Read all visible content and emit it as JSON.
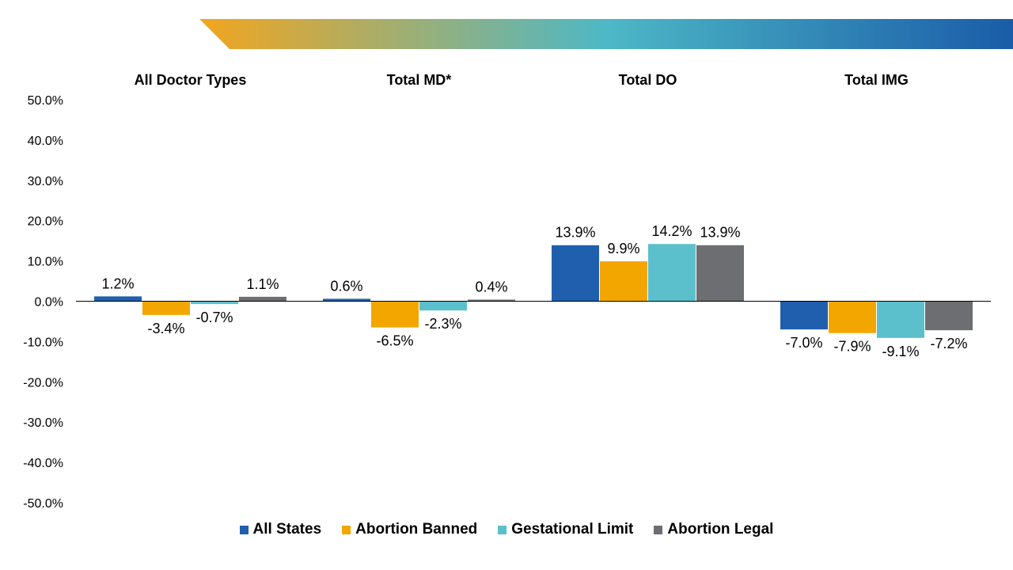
{
  "colors": {
    "banner_stops": [
      "#F3A51E",
      "#4DB8C6",
      "#1A5CA8"
    ]
  },
  "chart_data": {
    "type": "bar",
    "categories": [
      "All Doctor Types",
      "Total MD*",
      "Total DO",
      "Total IMG"
    ],
    "series": [
      {
        "name": "All States",
        "color": "#1F5FAD",
        "values": [
          1.2,
          0.6,
          13.9,
          -7.0
        ],
        "labels": [
          "1.2%",
          "0.6%",
          "13.9%",
          "-7.0%"
        ]
      },
      {
        "name": "Abortion Banned",
        "color": "#F3A500",
        "values": [
          -3.4,
          -6.5,
          9.9,
          -7.9
        ],
        "labels": [
          "-3.4%",
          "-6.5%",
          "9.9%",
          "-7.9%"
        ]
      },
      {
        "name": "Gestational Limit",
        "color": "#5BC0CB",
        "values": [
          -0.7,
          -2.3,
          14.2,
          -9.1
        ],
        "labels": [
          "-0.7%",
          "-2.3%",
          "14.2%",
          "-9.1%"
        ]
      },
      {
        "name": "Abortion Legal",
        "color": "#6D6E71",
        "values": [
          1.1,
          0.4,
          13.9,
          -7.2
        ],
        "labels": [
          "1.1%",
          "0.4%",
          "13.9%",
          "-7.2%"
        ]
      }
    ],
    "ylim": [
      -50,
      50
    ],
    "yticks": [
      50,
      40,
      30,
      20,
      10,
      0,
      -10,
      -20,
      -30,
      -40,
      -50
    ],
    "ytick_labels": [
      "50.0%",
      "40.0%",
      "30.0%",
      "20.0%",
      "10.0%",
      "0.0%",
      "-10.0%",
      "-20.0%",
      "-30.0%",
      "-40.0%",
      "-50.0%"
    ],
    "legend_position": "bottom",
    "grid": false
  }
}
